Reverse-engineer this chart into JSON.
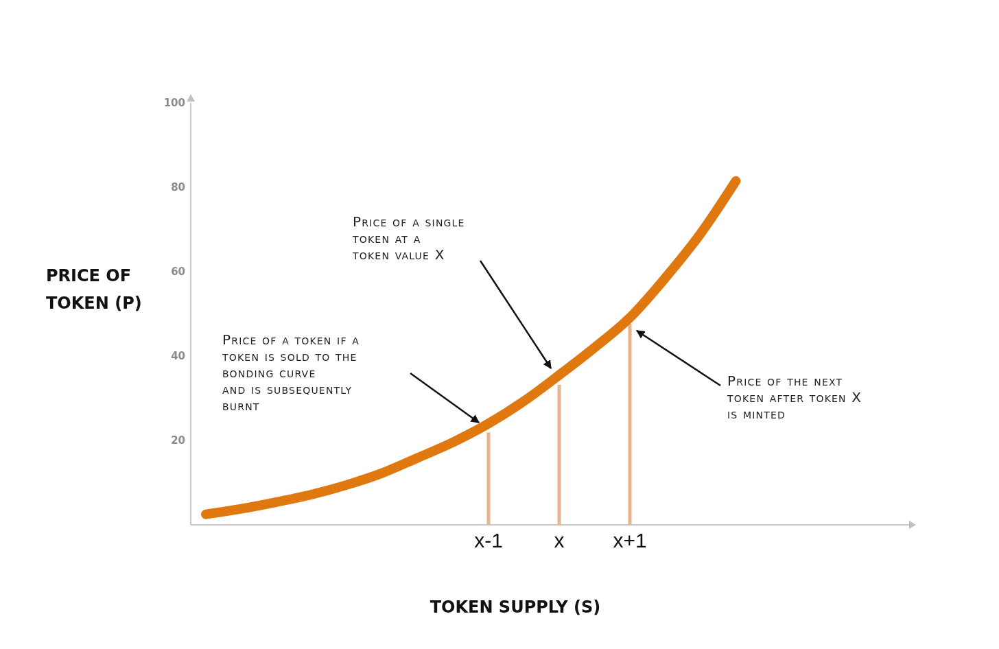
{
  "chart_data": {
    "type": "line",
    "xlabel": "TOKEN SUPPLY (S)",
    "ylabel": "PRICE OF\nTOKEN (P)",
    "categories": [
      null,
      null,
      null,
      null,
      null,
      null,
      null,
      null,
      "x-1",
      null,
      "x",
      null,
      "x+1",
      null,
      null,
      null,
      null,
      null,
      null,
      null,
      null
    ],
    "ylim": [
      0,
      100
    ],
    "yticks": [
      20,
      40,
      60,
      80,
      100
    ],
    "line_style": "solid",
    "series": [
      {
        "type": "bar",
        "color": "#e6b48f",
        "values": [
          null,
          null,
          null,
          null,
          null,
          null,
          null,
          null,
          21.9,
          null,
          33.2,
          null,
          47.7,
          null,
          null,
          null,
          null,
          null,
          null,
          null,
          null
        ]
      },
      {
        "color": "#e07810",
        "values": [
          2.5,
          3.8,
          5.4,
          7.2,
          9.5,
          12.3,
          15.9,
          19.6,
          24.0,
          29.3,
          35.5,
          42,
          49.1,
          58.5,
          69,
          81.5,
          null,
          null,
          null,
          null,
          null
        ]
      }
    ],
    "annotations": [
      "Price of a single\ntoken at a\ntoken value X",
      "Price of a token if a\ntoken is sold to the\nbonding curve\nand is subsequently\nburnt",
      "Price of the next\ntoken after token X\nis minted"
    ]
  }
}
